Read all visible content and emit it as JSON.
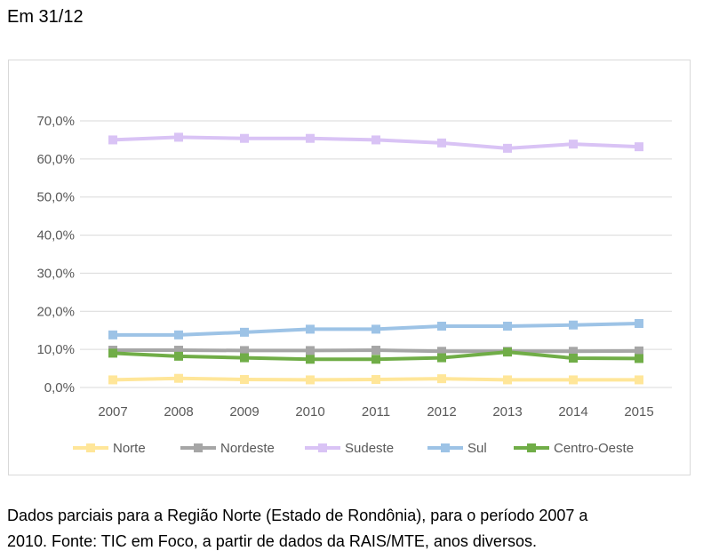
{
  "header": {
    "title": "Em 31/12"
  },
  "caption": {
    "line1": "Dados parciais para a Região Norte (Estado de Rondônia), para o período 2007 a",
    "line2": "2010. Fonte: TIC em Foco, a partir de dados da RAIS/MTE, anos diversos."
  },
  "chart_data": {
    "type": "line",
    "title": "",
    "xlabel": "",
    "ylabel": "",
    "categories": [
      "2007",
      "2008",
      "2009",
      "2010",
      "2011",
      "2012",
      "2013",
      "2014",
      "2015"
    ],
    "ylim": [
      0,
      70
    ],
    "yticks": [
      0,
      10,
      20,
      30,
      40,
      50,
      60,
      70
    ],
    "ytick_labels": [
      "0,0%",
      "10,0%",
      "20,0%",
      "30,0%",
      "40,0%",
      "50,0%",
      "60,0%",
      "70,0%"
    ],
    "grid": true,
    "legend_position": "bottom",
    "series": [
      {
        "name": "Norte",
        "color": "#ffe699",
        "values": [
          2.0,
          2.4,
          2.1,
          2.0,
          2.1,
          2.3,
          2.0,
          2.0,
          2.0
        ]
      },
      {
        "name": "Nordeste",
        "color": "#a6a6a6",
        "values": [
          9.8,
          9.8,
          9.7,
          9.7,
          9.8,
          9.5,
          9.5,
          9.5,
          9.6
        ]
      },
      {
        "name": "Sudeste",
        "color": "#d9c3f5",
        "values": [
          65.0,
          65.7,
          65.4,
          65.4,
          65.0,
          64.2,
          62.8,
          63.9,
          63.2
        ]
      },
      {
        "name": "Sul",
        "color": "#9dc3e6",
        "values": [
          13.8,
          13.8,
          14.5,
          15.3,
          15.3,
          16.1,
          16.1,
          16.4,
          16.8
        ]
      },
      {
        "name": "Centro-Oeste",
        "color": "#70ad47",
        "values": [
          9.0,
          8.2,
          7.8,
          7.4,
          7.4,
          7.8,
          9.3,
          7.7,
          7.6
        ]
      }
    ]
  }
}
